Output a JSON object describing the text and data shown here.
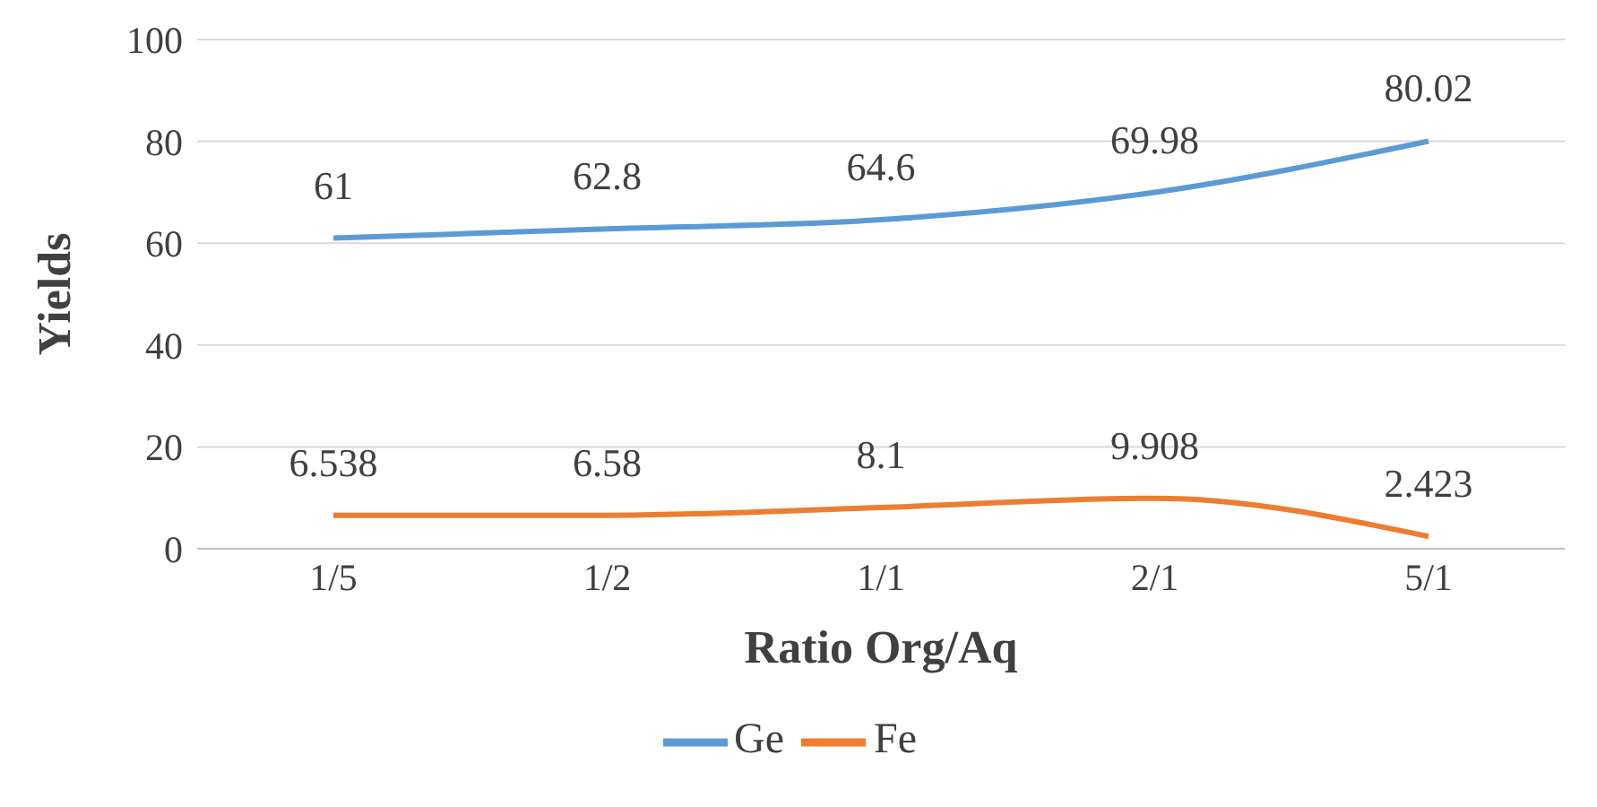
{
  "chart_data": {
    "type": "line",
    "xlabel": "Ratio Org/Aq",
    "ylabel": "Yields",
    "categories": [
      "1/5",
      "1/2",
      "1/1",
      "2/1",
      "5/1"
    ],
    "series": [
      {
        "name": "Ge",
        "color": "#5b9bd5",
        "values": [
          61,
          62.8,
          64.6,
          69.98,
          80.02
        ]
      },
      {
        "name": "Fe",
        "color": "#ed7d31",
        "values": [
          6.538,
          6.58,
          8.1,
          9.908,
          2.423
        ]
      }
    ],
    "ylim": [
      0,
      100
    ],
    "yticks": [
      0,
      20,
      40,
      60,
      80,
      100
    ],
    "grid": "y",
    "legend": "bottom",
    "marker": "none",
    "line_style": "solid",
    "data_labels": true
  }
}
